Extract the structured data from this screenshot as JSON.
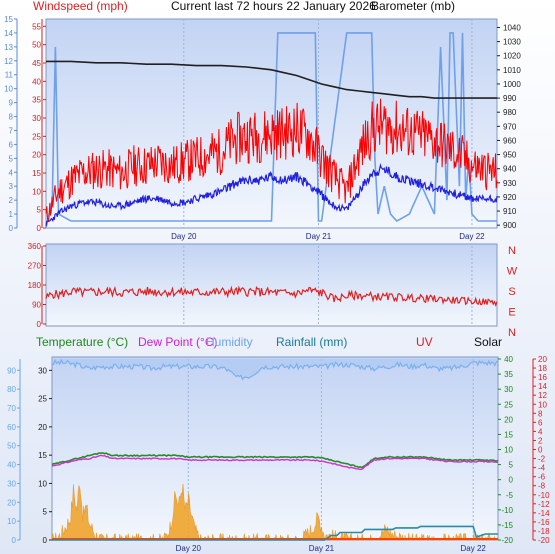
{
  "header": {
    "windspeed_label": "Windspeed (mph)",
    "title": "Current last 72 hours 22 January 2026",
    "barometer_label": "Barometer (mb)"
  },
  "lower_header": {
    "temperature_label": "Temperature (°C)",
    "dewpoint_label": "Dew Point (°C)",
    "humidity_label": "Humidity",
    "rainfall_label": "Rainfall (mm)",
    "uv_label": "UV",
    "solar_label": "Solar"
  },
  "colors": {
    "panel_top": "#c6d6f4",
    "panel_bottom": "#f4f7fd",
    "windgust": "#ff0000",
    "windavg": "#2020e0",
    "barometer": "#202020",
    "winddir_axis": "#c0c0ff",
    "direction": "#e02020",
    "temperature": "#2a8a2a",
    "dewpoint": "#d030d0",
    "humidity": "#7ab0ee",
    "rainfall": "#2a8aa8",
    "solar": "#f0a020",
    "uv": "#ff4400"
  },
  "chart_data": [
    {
      "type": "line",
      "name": "wind-barometer",
      "x_tick_labels": [
        "Day 20",
        "Day 21",
        "Day 22"
      ],
      "x_ticks_hours": [
        22,
        43.5,
        68
      ],
      "x_range_hours": [
        0,
        72
      ],
      "left_axis": {
        "label": "Windspeed (mph)",
        "range": [
          0,
          57
        ],
        "ticks": [
          0,
          5,
          10,
          15,
          20,
          25,
          30,
          35,
          40,
          45,
          50,
          55
        ]
      },
      "far_left_axis": {
        "range": [
          0,
          15
        ],
        "ticks": [
          0,
          1,
          2,
          3,
          4,
          5,
          6,
          7,
          8,
          9,
          10,
          11,
          12,
          13,
          14,
          15
        ]
      },
      "right_axis": {
        "label": "Barometer (mb)",
        "range": [
          898,
          1046
        ],
        "ticks": [
          900,
          910,
          920,
          930,
          940,
          950,
          960,
          970,
          980,
          990,
          1000,
          1010,
          1020,
          1030,
          1040
        ]
      },
      "series": [
        {
          "name": "Windspeed (mph)",
          "axis": "left",
          "x": [
            0,
            2,
            4,
            6,
            8,
            10,
            12,
            14,
            16,
            18,
            20,
            22,
            24,
            26,
            28,
            30,
            32,
            34,
            36,
            38,
            40,
            42,
            44,
            46,
            48,
            50,
            52,
            54,
            56,
            58,
            60,
            62,
            64,
            66,
            68,
            70,
            72
          ],
          "y": [
            3,
            10,
            13,
            15,
            16,
            16,
            15,
            17,
            17,
            18,
            17,
            18,
            19,
            20,
            21,
            24,
            25,
            25,
            26,
            26,
            27,
            25,
            19,
            14,
            10,
            20,
            27,
            28,
            27,
            26,
            25,
            24,
            22,
            20,
            17,
            16,
            15
          ]
        },
        {
          "name": "Wind average",
          "axis": "left",
          "x": [
            0,
            2,
            4,
            6,
            8,
            10,
            12,
            14,
            16,
            18,
            20,
            22,
            24,
            26,
            28,
            30,
            32,
            34,
            36,
            38,
            40,
            42,
            44,
            46,
            48,
            50,
            52,
            54,
            56,
            58,
            60,
            62,
            64,
            66,
            68,
            70,
            72
          ],
          "y": [
            1,
            4,
            6,
            7,
            7,
            6,
            6,
            7,
            8,
            8,
            7,
            7,
            8,
            9,
            10,
            12,
            13,
            13,
            14,
            13,
            14,
            12,
            9,
            6,
            5,
            10,
            15,
            16,
            14,
            13,
            12,
            11,
            10,
            9,
            8,
            8,
            8
          ]
        },
        {
          "name": "Barometer (mb)",
          "axis": "right",
          "x": [
            0,
            4,
            8,
            12,
            16,
            20,
            24,
            28,
            32,
            36,
            38,
            40,
            42,
            44,
            46,
            48,
            50,
            52,
            54,
            56,
            58,
            60,
            62,
            64,
            66,
            68,
            70,
            72
          ],
          "y": [
            1016,
            1016,
            1015,
            1015,
            1014,
            1014,
            1013,
            1013,
            1012,
            1010,
            1008,
            1006,
            1003,
            1000,
            998,
            996,
            995,
            994,
            993,
            992,
            991,
            991,
            990,
            990,
            990,
            990,
            990,
            990
          ]
        },
        {
          "name": "Wind spikes",
          "axis": "far_left",
          "x": [
            0,
            1,
            1.5,
            2,
            4,
            36,
            37,
            37.5,
            41,
            41.5,
            42,
            43,
            43.5,
            44,
            48,
            49,
            49.5,
            52,
            52.5,
            53,
            54,
            55,
            56,
            58,
            60,
            62,
            63,
            64,
            64.5,
            65,
            66,
            66.5,
            67,
            67.5,
            68,
            69,
            70,
            71,
            72
          ],
          "y": [
            0,
            2,
            13,
            1,
            0.5,
            0.5,
            14,
            14,
            14,
            14,
            14,
            14,
            0.5,
            0.5,
            14,
            14,
            14,
            14,
            5,
            1,
            3,
            1,
            0.5,
            1,
            3,
            1,
            13,
            2,
            14,
            14,
            3,
            14,
            2,
            5,
            1,
            0.5,
            0.5,
            0.5,
            0.5
          ]
        }
      ]
    },
    {
      "type": "line",
      "name": "wind-direction",
      "x_range_hours": [
        0,
        72
      ],
      "left_axis": {
        "range": [
          0,
          360
        ],
        "ticks": [
          0,
          90,
          180,
          270,
          360
        ]
      },
      "right_labels": [
        "N",
        "W",
        "S",
        "E",
        "N"
      ],
      "series": [
        {
          "name": "Wind direction",
          "x": [
            0,
            1,
            2,
            4,
            6,
            8,
            10,
            12,
            16,
            20,
            24,
            28,
            32,
            36,
            40,
            42,
            44,
            46,
            48,
            50,
            52,
            54,
            56,
            58,
            60,
            62,
            64,
            66,
            68,
            70,
            72
          ],
          "y": [
            120,
            140,
            135,
            150,
            145,
            148,
            150,
            145,
            150,
            148,
            146,
            148,
            150,
            146,
            140,
            155,
            145,
            115,
            130,
            132,
            128,
            124,
            125,
            120,
            118,
            116,
            112,
            108,
            105,
            102,
            100
          ]
        }
      ]
    },
    {
      "type": "line",
      "name": "temperature-rain-solar",
      "x_tick_labels": [
        "Day 20",
        "Day 21",
        "Day 22"
      ],
      "x_ticks_hours": [
        22,
        43.5,
        68
      ],
      "x_range_hours": [
        0,
        72
      ],
      "left_axis": {
        "range": [
          0,
          32
        ],
        "ticks": [
          0,
          5,
          10,
          15,
          20,
          25,
          30
        ]
      },
      "far_left_axis": {
        "range": [
          0,
          96
        ],
        "ticks": [
          0,
          10,
          20,
          30,
          40,
          50,
          60,
          70,
          80,
          90
        ]
      },
      "right_axis": {
        "range": [
          -20,
          40
        ],
        "ticks": [
          -20,
          -15,
          -10,
          -5,
          0,
          5,
          10,
          15,
          20,
          25,
          30,
          35,
          40
        ]
      },
      "far_right_axis": {
        "range": [
          -20,
          20
        ],
        "ticks": [
          -20,
          -18,
          -16,
          -14,
          -12,
          -10,
          -8,
          -6,
          -4,
          -2,
          0,
          2,
          4,
          6,
          8,
          10,
          12,
          14,
          16,
          18,
          20
        ]
      },
      "series": [
        {
          "name": "Temperature (°C)",
          "axis": "right",
          "x": [
            0,
            2,
            4,
            6,
            8,
            10,
            12,
            14,
            16,
            18,
            20,
            22,
            24,
            26,
            28,
            30,
            32,
            34,
            36,
            38,
            40,
            42,
            44,
            46,
            48,
            50,
            52,
            54,
            56,
            58,
            60,
            62,
            64,
            66,
            68,
            70,
            72
          ],
          "y": [
            5,
            6,
            7,
            8,
            9,
            8,
            8,
            8,
            8,
            8,
            8,
            7.5,
            7.5,
            7.5,
            7.5,
            7.5,
            7.5,
            7.5,
            7.5,
            7.5,
            7.5,
            7.5,
            7,
            6,
            5,
            4,
            7,
            7.5,
            7.5,
            7.5,
            7.5,
            7,
            6.5,
            6.5,
            6.5,
            6.5,
            6.3
          ]
        },
        {
          "name": "Dew Point (°C)",
          "axis": "right",
          "x": [
            0,
            2,
            4,
            6,
            8,
            10,
            12,
            14,
            16,
            18,
            20,
            22,
            24,
            26,
            28,
            30,
            32,
            34,
            36,
            38,
            40,
            42,
            44,
            46,
            48,
            50,
            52,
            54,
            56,
            58,
            60,
            62,
            64,
            66,
            68,
            70,
            72
          ],
          "y": [
            4.5,
            5.5,
            6.5,
            7,
            8,
            7,
            7,
            7,
            7,
            7,
            7,
            6.5,
            6.5,
            6.5,
            6.5,
            6.5,
            6.5,
            6.5,
            6.5,
            6.5,
            6.5,
            6.5,
            6,
            5,
            4,
            3.5,
            6.5,
            7,
            7,
            7,
            7,
            6.5,
            6,
            6,
            6,
            6,
            5.8
          ]
        },
        {
          "name": "Humidity",
          "axis": "far_left",
          "x": [
            0,
            2,
            4,
            6,
            8,
            10,
            12,
            14,
            16,
            18,
            20,
            22,
            24,
            26,
            28,
            30,
            32,
            34,
            36,
            38,
            40,
            42,
            44,
            46,
            48,
            50,
            52,
            54,
            56,
            58,
            60,
            62,
            64,
            66,
            68,
            70,
            72
          ],
          "y": [
            94,
            94,
            93,
            91,
            92,
            92,
            92,
            92,
            91,
            92,
            92,
            92,
            92,
            92,
            91,
            86,
            87,
            92,
            92,
            92,
            92,
            92,
            92,
            93,
            93,
            92,
            91,
            92,
            93,
            92,
            93,
            91,
            91,
            92,
            94,
            94,
            94
          ]
        },
        {
          "name": "Rainfall (mm)",
          "axis": "right",
          "x": [
            0,
            39,
            42,
            44,
            45,
            46,
            46.5,
            50,
            50.5,
            55,
            55.5,
            59,
            59.5,
            66,
            68,
            68.5,
            70,
            72
          ],
          "y": [
            -20,
            -20,
            -20,
            -20,
            -18.5,
            -18.5,
            -17.5,
            -17.5,
            -16.5,
            -16.5,
            -16,
            -16,
            -15.5,
            -15.5,
            -15.5,
            -19,
            -18,
            -18
          ]
        },
        {
          "name": "Solar",
          "axis": "left",
          "x": [
            0,
            1,
            2,
            3,
            3.5,
            4,
            4.5,
            5,
            5.5,
            6,
            7,
            8,
            12,
            18,
            19,
            19.5,
            20,
            20.5,
            21,
            21.5,
            22,
            23,
            24,
            30,
            40,
            41,
            42,
            43,
            44,
            48,
            49,
            50,
            51,
            52,
            53,
            54,
            55,
            58,
            72
          ],
          "y": [
            0,
            0.5,
            2,
            4,
            9,
            5,
            11,
            4,
            6,
            3,
            1,
            0,
            0,
            0,
            2,
            5,
            8,
            6,
            10,
            5,
            7,
            2,
            0,
            0,
            0,
            1,
            2,
            4,
            1,
            0,
            0,
            0,
            0,
            0,
            1,
            2,
            1,
            0,
            0
          ]
        }
      ]
    }
  ]
}
